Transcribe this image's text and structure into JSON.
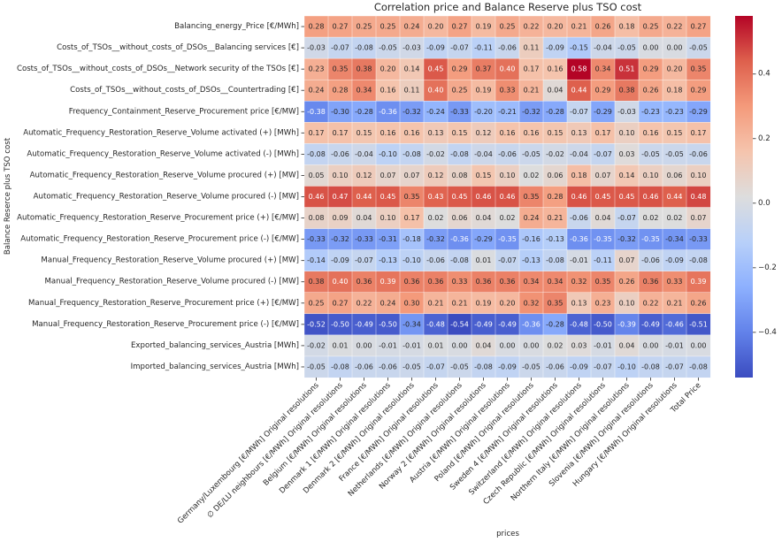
{
  "chart_data": {
    "type": "heatmap",
    "title": "Correlation price and Balance Reserve plus TSO cost",
    "xlabel": "prices",
    "ylabel": "Balance Reserce plus TSO cost",
    "colormap": "coolwarm",
    "vmin": -0.54,
    "vmax": 0.58,
    "colorbar_ticks": [
      0.4,
      0.2,
      0.0,
      -0.2,
      -0.4
    ],
    "colorbar_tick_labels": [
      "0.4",
      "0.2",
      "0.0",
      "−0.2",
      "−0.4"
    ],
    "x_categories": [
      "Germany/Luxembourg [€/MWh] Original resolutions",
      "∅ DE/LU neighbours [€/MWh] Original resolutions",
      "Belgium [€/MWh] Original resolutions",
      "Denmark 1 [€/MWh] Original resolutions",
      "Denmark 2 [€/MWh] Original resolutions",
      "France [€/MWh] Original resolutions",
      "Netherlands [€/MWh] Original resolutions",
      "Norway 2 [€/MWh] Original resolutions",
      "Austria [€/MWh] Original resolutions",
      "Poland [€/MWh] Original resolutions",
      "Sweden 4 [€/MWh] Original resolutions",
      "Switzerland [€/MWh] Original resolutions",
      "Czech Republic [€/MWh] Original resolutions",
      "Northern Italy [€/MWh] Original resolutions",
      "Slovenia [€/MWh] Original resolutions",
      "Hungary [€/MWh] Original resolutions",
      "Total Price"
    ],
    "y_categories": [
      "Balancing_energy_Price [€/MWh]",
      "Costs_of_TSOs__without_costs_of_DSOs__Balancing services [€]",
      "Costs_of_TSOs__without_costs_of_DSOs__Network security of the TSOs [€]",
      "Costs_of_TSOs__without_costs_of_DSOs__Countertrading [€]",
      "Frequency_Containment_Reserve_Procurement price [€/MW]",
      "Automatic_Frequency_Restoration_Reserve_Volume activated (+) [MWh]",
      "Automatic_Frequency_Restoration_Reserve_Volume activated (-) [MWh]",
      "Automatic_Frequency_Restoration_Reserve_Volume procured (+) [MW]",
      "Automatic_Frequency_Restoration_Reserve_Volume procured (-) [MW]",
      "Automatic_Frequency_Restoration_Reserve_Procurement price (+) [€/MW]",
      "Automatic_Frequency_Restoration_Reserve_Procurement price (-) [€/MW]",
      "Manual_Frequency_Restoration_Reserve_Volume procured (+) [MW]",
      "Manual_Frequency_Restoration_Reserve_Volume procured (-) [MW]",
      "Manual_Frequency_Restoration_Reserve_Procurement price (+) [€/MW]",
      "Manual_Frequency_Restoration_Reserve_Procurement price (-) [€/MW]",
      "Exported_balancing_services_Austria [MWh]",
      "Imported_balancing_services_Austria [MWh]"
    ],
    "values": [
      [
        0.28,
        0.27,
        0.25,
        0.25,
        0.24,
        0.2,
        0.27,
        0.19,
        0.25,
        0.22,
        0.2,
        0.21,
        0.26,
        0.18,
        0.25,
        0.22,
        0.27
      ],
      [
        -0.03,
        -0.07,
        -0.08,
        -0.05,
        -0.03,
        -0.09,
        -0.07,
        -0.11,
        -0.06,
        0.11,
        -0.09,
        -0.15,
        -0.04,
        -0.05,
        -0.0,
        -0.0,
        -0.05
      ],
      [
        0.23,
        0.35,
        0.38,
        0.2,
        0.14,
        0.45,
        0.29,
        0.37,
        0.4,
        0.17,
        0.16,
        0.58,
        0.34,
        0.51,
        0.29,
        0.2,
        0.35
      ],
      [
        0.24,
        0.28,
        0.34,
        0.16,
        0.11,
        0.4,
        0.25,
        0.19,
        0.33,
        0.21,
        0.04,
        0.44,
        0.29,
        0.38,
        0.26,
        0.18,
        0.29
      ],
      [
        -0.38,
        -0.3,
        -0.28,
        -0.36,
        -0.32,
        -0.24,
        -0.33,
        -0.2,
        -0.21,
        -0.32,
        -0.28,
        -0.07,
        -0.29,
        -0.03,
        -0.23,
        -0.23,
        -0.29
      ],
      [
        0.17,
        0.17,
        0.15,
        0.16,
        0.16,
        0.13,
        0.15,
        0.12,
        0.16,
        0.16,
        0.15,
        0.13,
        0.17,
        0.1,
        0.16,
        0.15,
        0.17
      ],
      [
        -0.08,
        -0.06,
        -0.04,
        -0.1,
        -0.08,
        -0.02,
        -0.08,
        -0.04,
        -0.06,
        -0.05,
        -0.02,
        -0.04,
        -0.07,
        0.03,
        -0.05,
        -0.05,
        -0.06
      ],
      [
        0.05,
        0.1,
        0.12,
        0.07,
        0.07,
        0.12,
        0.08,
        0.15,
        0.1,
        0.02,
        0.06,
        0.18,
        0.07,
        0.14,
        0.1,
        0.06,
        0.1
      ],
      [
        0.46,
        0.47,
        0.44,
        0.45,
        0.35,
        0.43,
        0.45,
        0.46,
        0.46,
        0.35,
        0.28,
        0.46,
        0.45,
        0.45,
        0.46,
        0.44,
        0.48
      ],
      [
        0.08,
        0.09,
        0.04,
        0.1,
        0.17,
        0.02,
        0.06,
        0.04,
        0.02,
        0.24,
        0.21,
        -0.06,
        0.04,
        -0.07,
        0.02,
        0.02,
        0.07
      ],
      [
        -0.33,
        -0.32,
        -0.33,
        -0.31,
        -0.18,
        -0.32,
        -0.36,
        -0.29,
        -0.35,
        -0.16,
        -0.13,
        -0.36,
        -0.35,
        -0.32,
        -0.35,
        -0.34,
        -0.33
      ],
      [
        -0.14,
        -0.09,
        -0.07,
        -0.13,
        -0.1,
        -0.06,
        -0.08,
        0.01,
        -0.07,
        -0.13,
        -0.08,
        -0.01,
        -0.11,
        0.07,
        -0.06,
        -0.09,
        -0.08
      ],
      [
        0.38,
        0.4,
        0.36,
        0.39,
        0.36,
        0.36,
        0.33,
        0.36,
        0.36,
        0.34,
        0.34,
        0.32,
        0.35,
        0.26,
        0.36,
        0.33,
        0.39
      ],
      [
        0.25,
        0.27,
        0.22,
        0.24,
        0.3,
        0.21,
        0.21,
        0.19,
        0.2,
        0.32,
        0.35,
        0.13,
        0.23,
        0.1,
        0.22,
        0.21,
        0.26
      ],
      [
        -0.52,
        -0.5,
        -0.49,
        -0.5,
        -0.34,
        -0.48,
        -0.54,
        -0.49,
        -0.49,
        -0.36,
        -0.28,
        -0.48,
        -0.5,
        -0.39,
        -0.49,
        -0.46,
        -0.51
      ],
      [
        -0.02,
        0.01,
        -0.0,
        -0.01,
        -0.01,
        0.01,
        -0.0,
        0.04,
        -0.0,
        -0.0,
        0.02,
        0.03,
        -0.01,
        0.04,
        -0.0,
        -0.01,
        0.0
      ],
      [
        -0.05,
        -0.08,
        -0.06,
        -0.06,
        -0.05,
        -0.07,
        -0.05,
        -0.08,
        -0.09,
        -0.05,
        -0.06,
        -0.09,
        -0.07,
        -0.1,
        -0.08,
        -0.07,
        -0.08
      ]
    ],
    "annotated": true,
    "value_format": "0.00",
    "legend": "right"
  }
}
